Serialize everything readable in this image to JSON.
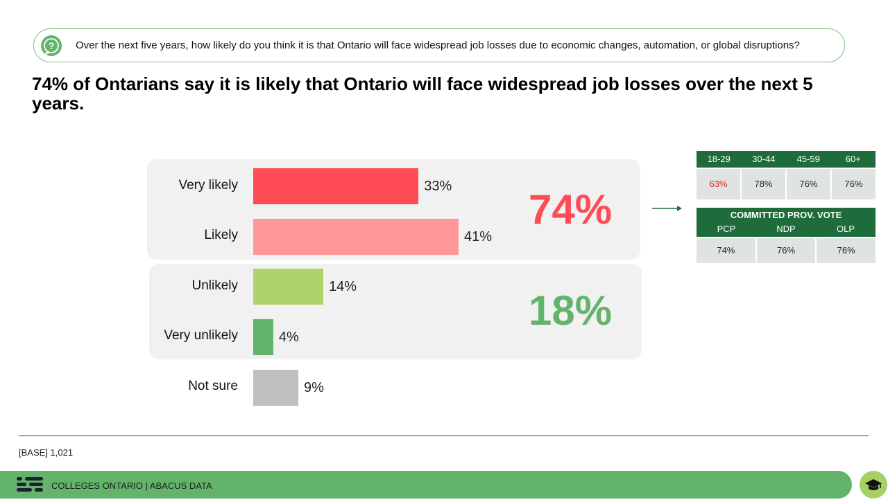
{
  "question": "Over the next five years, how likely do you think it is that Ontario will face widespread job losses due to economic changes, automation, or global disruptions?",
  "headline": "74% of Ontarians say it is likely that Ontario will face widespread job losses over the next 5 years.",
  "chart_data": {
    "type": "bar",
    "orientation": "horizontal",
    "categories": [
      "Very likely",
      "Likely",
      "Unlikely",
      "Very unlikely",
      "Not sure"
    ],
    "values": [
      33,
      41,
      14,
      4,
      9
    ],
    "value_labels": [
      "33%",
      "41%",
      "14%",
      "4%",
      "9%"
    ],
    "colors": [
      "#ff4b55",
      "#ff9799",
      "#afd36a",
      "#63b46a",
      "#bfbfbf"
    ],
    "groups": [
      {
        "name": "likely",
        "total_label": "74%",
        "color": "#ff4b55"
      },
      {
        "name": "unlikely",
        "total_label": "18%",
        "color": "#63b46a"
      }
    ],
    "title": "",
    "xlabel": "",
    "ylabel": "",
    "xlim": [
      0,
      41
    ]
  },
  "age_table": {
    "headers": [
      "18-29",
      "30-44",
      "45-59",
      "60+"
    ],
    "values": [
      "63%",
      "78%",
      "76%",
      "76%"
    ],
    "highlight_color": "#e8212b"
  },
  "vote_table": {
    "title": "COMMITTED PROV. VOTE",
    "headers": [
      "PCP",
      "NDP",
      "OLP"
    ],
    "values": [
      "74%",
      "76%",
      "76%"
    ]
  },
  "base": "[BASE] 1,021",
  "footer": "COLLEGES ONTARIO  |  ABACUS DATA",
  "colors": {
    "green": "#63b46a",
    "dark_green": "#1e6b3b",
    "panel": "#f1f1f1",
    "lime": "#a7cf63"
  }
}
